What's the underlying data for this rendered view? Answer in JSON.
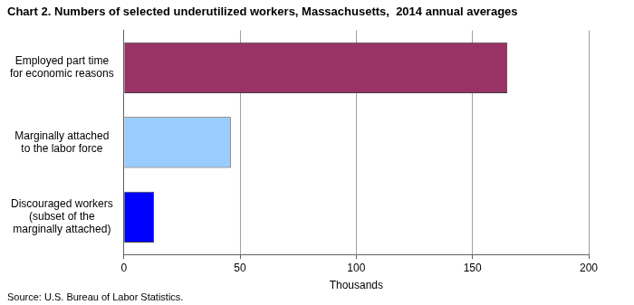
{
  "chart_data": {
    "type": "bar",
    "orientation": "horizontal",
    "title": "Chart 2. Numbers of selected underutilized workers, Massachusetts,  2014 annual averages",
    "categories": [
      [
        "Employed part time",
        "for economic reasons"
      ],
      [
        "Marginally attached",
        "to the labor force"
      ],
      [
        "Discouraged workers",
        "(subset of the",
        "marginally attached)"
      ]
    ],
    "values": [
      165,
      46,
      13
    ],
    "colors": [
      "#993366",
      "#99ccff",
      "#0000ff"
    ],
    "xlabel": "Thousands",
    "xlim": [
      0,
      200
    ],
    "xticks": [
      0,
      50,
      100,
      150,
      200
    ],
    "grid": true,
    "source": "Source: U.S. Bureau of Labor Statistics."
  }
}
